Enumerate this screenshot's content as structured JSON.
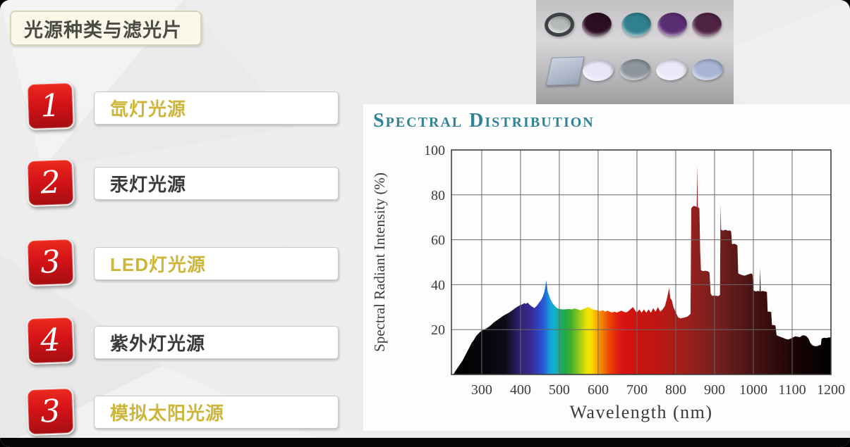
{
  "slide": {
    "title": "光源种类与滤光片",
    "items": [
      {
        "number": "1",
        "label": "氙灯光源",
        "emphasis": true
      },
      {
        "number": "2",
        "label": "汞灯光源",
        "emphasis": false
      },
      {
        "number": "3",
        "label": "LED灯光源",
        "emphasis": true
      },
      {
        "number": "4",
        "label": "紫外灯光源",
        "emphasis": false
      },
      {
        "number": "3",
        "label": "模拟太阳光源",
        "emphasis": true
      }
    ],
    "colors": {
      "badge_red": "#d41317",
      "gold_text": "#cdb53a",
      "dark_text": "#3a3a3a",
      "title_box_bg": "#fbf8ea",
      "chart_heading_teal": "#2f8298"
    }
  },
  "filters_image": {
    "top_row": [
      {
        "kind": "ringed-lens",
        "color": "#b5b9b5",
        "ring": "#3c4145"
      },
      {
        "kind": "filter-disc",
        "color": "#2c0d22"
      },
      {
        "kind": "filter-disc",
        "color": "#31808f"
      },
      {
        "kind": "filter-disc",
        "color": "#5b2e74"
      },
      {
        "kind": "filter-disc",
        "color": "#4f2342"
      }
    ],
    "bottom_row": [
      {
        "kind": "glass-plate",
        "color": "#b2bccf"
      },
      {
        "kind": "filter-disc",
        "color": "#e9e6fa"
      },
      {
        "kind": "filter-disc",
        "color": "#8d959c"
      },
      {
        "kind": "filter-disc",
        "color": "#ece7f8"
      },
      {
        "kind": "filter-disc",
        "color": "#a8b4d6"
      }
    ]
  },
  "chart_data": {
    "type": "area",
    "title": "Spectral Distribution",
    "xlabel": "Wavelength (nm)",
    "ylabel": "Spectral Radiant Intensity (%)",
    "x_ticks": [
      300,
      400,
      500,
      600,
      700,
      800,
      900,
      1000,
      1100,
      1200
    ],
    "y_ticks": [
      20,
      40,
      60,
      80,
      100
    ],
    "x_range": [
      222,
      1200
    ],
    "y_range": [
      0,
      100
    ],
    "grid": true,
    "points": [
      [
        227,
        0
      ],
      [
        232,
        1.5
      ],
      [
        238,
        3
      ],
      [
        244,
        4.5
      ],
      [
        250,
        6
      ],
      [
        256,
        8
      ],
      [
        262,
        10
      ],
      [
        268,
        12
      ],
      [
        274,
        14
      ],
      [
        280,
        15.5
      ],
      [
        285,
        17
      ],
      [
        290,
        18
      ],
      [
        295,
        18.8
      ],
      [
        300,
        19.5
      ],
      [
        306,
        20
      ],
      [
        312,
        20.5
      ],
      [
        318,
        21.2
      ],
      [
        324,
        22
      ],
      [
        330,
        23
      ],
      [
        338,
        24
      ],
      [
        346,
        25
      ],
      [
        354,
        26
      ],
      [
        362,
        26.8
      ],
      [
        370,
        27.5
      ],
      [
        378,
        28.5
      ],
      [
        386,
        29.5
      ],
      [
        392,
        30.2
      ],
      [
        398,
        30.8
      ],
      [
        404,
        31.2
      ],
      [
        410,
        31.8
      ],
      [
        414,
        31.4
      ],
      [
        418,
        32
      ],
      [
        424,
        31
      ],
      [
        430,
        30.2
      ],
      [
        436,
        29.6
      ],
      [
        442,
        30.6
      ],
      [
        448,
        32
      ],
      [
        453,
        33.2
      ],
      [
        457,
        34.5
      ],
      [
        461,
        36.5
      ],
      [
        464,
        39
      ],
      [
        466,
        42
      ],
      [
        468,
        40
      ],
      [
        470,
        37
      ],
      [
        473,
        35.5
      ],
      [
        476,
        34
      ],
      [
        480,
        32.5
      ],
      [
        484,
        31.4
      ],
      [
        489,
        30.4
      ],
      [
        494,
        29.6
      ],
      [
        500,
        29.2
      ],
      [
        508,
        29
      ],
      [
        516,
        29
      ],
      [
        524,
        29.2
      ],
      [
        532,
        29
      ],
      [
        540,
        29.4
      ],
      [
        548,
        29
      ],
      [
        554,
        28.6
      ],
      [
        560,
        29
      ],
      [
        566,
        29.4
      ],
      [
        572,
        30
      ],
      [
        578,
        29.8
      ],
      [
        584,
        29.2
      ],
      [
        590,
        28.8
      ],
      [
        598,
        28.6
      ],
      [
        606,
        28.2
      ],
      [
        612,
        28.6
      ],
      [
        618,
        28
      ],
      [
        624,
        28.4
      ],
      [
        630,
        28
      ],
      [
        636,
        27.6
      ],
      [
        642,
        28
      ],
      [
        648,
        27.6
      ],
      [
        654,
        28
      ],
      [
        660,
        28.4
      ],
      [
        666,
        28
      ],
      [
        672,
        27.6
      ],
      [
        678,
        28.2
      ],
      [
        684,
        29.2
      ],
      [
        690,
        30
      ],
      [
        695,
        28.6
      ],
      [
        700,
        27.5
      ],
      [
        706,
        29
      ],
      [
        712,
        27.5
      ],
      [
        718,
        29
      ],
      [
        724,
        27.5
      ],
      [
        730,
        29
      ],
      [
        736,
        27.5
      ],
      [
        742,
        29.5
      ],
      [
        748,
        28
      ],
      [
        754,
        30
      ],
      [
        760,
        28
      ],
      [
        766,
        29
      ],
      [
        772,
        30.5
      ],
      [
        776,
        33
      ],
      [
        780,
        36
      ],
      [
        783,
        38.5
      ],
      [
        786,
        34
      ],
      [
        790,
        33
      ],
      [
        794,
        30
      ],
      [
        798,
        28.5
      ],
      [
        802,
        27
      ],
      [
        806,
        25.5
      ],
      [
        812,
        25
      ],
      [
        818,
        25.2
      ],
      [
        824,
        25.5
      ],
      [
        830,
        25.8
      ],
      [
        835,
        26.5
      ],
      [
        838,
        27
      ],
      [
        840,
        74
      ],
      [
        845,
        75
      ],
      [
        850,
        75
      ],
      [
        854,
        74.5
      ],
      [
        855.5,
        93
      ],
      [
        857,
        74.5
      ],
      [
        861,
        74
      ],
      [
        863,
        55
      ],
      [
        865,
        46.5
      ],
      [
        870,
        46
      ],
      [
        876,
        46.2
      ],
      [
        882,
        46
      ],
      [
        887,
        45.5
      ],
      [
        890,
        36
      ],
      [
        894,
        35
      ],
      [
        900,
        35.2
      ],
      [
        906,
        35
      ],
      [
        911,
        35
      ],
      [
        914,
        35.5
      ],
      [
        915.5,
        76
      ],
      [
        917,
        64.5
      ],
      [
        922,
        64
      ],
      [
        928,
        64.5
      ],
      [
        934,
        64
      ],
      [
        940,
        64.2
      ],
      [
        943,
        63.5
      ],
      [
        945,
        58
      ],
      [
        950,
        58.2
      ],
      [
        955,
        58
      ],
      [
        959,
        57.5
      ],
      [
        961,
        45
      ],
      [
        966,
        44.6
      ],
      [
        972,
        44.2
      ],
      [
        978,
        44
      ],
      [
        984,
        44.4
      ],
      [
        990,
        44.8
      ],
      [
        995,
        45
      ],
      [
        998,
        44.5
      ],
      [
        1000,
        37.5
      ],
      [
        1006,
        37
      ],
      [
        1012,
        37.2
      ],
      [
        1016,
        37
      ],
      [
        1017.5,
        47.5
      ],
      [
        1019,
        37
      ],
      [
        1024,
        37.2
      ],
      [
        1030,
        37
      ],
      [
        1035,
        36.8
      ],
      [
        1037,
        28
      ],
      [
        1042,
        28
      ],
      [
        1046,
        27.8
      ],
      [
        1048,
        22
      ],
      [
        1053,
        22
      ],
      [
        1057,
        21.8
      ],
      [
        1060,
        17.5
      ],
      [
        1066,
        17
      ],
      [
        1072,
        16.6
      ],
      [
        1078,
        16.2
      ],
      [
        1084,
        15.8
      ],
      [
        1090,
        15.6
      ],
      [
        1096,
        16
      ],
      [
        1102,
        16.5
      ],
      [
        1108,
        17
      ],
      [
        1114,
        16.8
      ],
      [
        1120,
        16.6
      ],
      [
        1126,
        17.4
      ],
      [
        1132,
        17.4
      ],
      [
        1137,
        17
      ],
      [
        1142,
        16
      ],
      [
        1147,
        14
      ],
      [
        1152,
        13
      ],
      [
        1158,
        12.6
      ],
      [
        1164,
        12.6
      ],
      [
        1170,
        13
      ],
      [
        1174,
        13.2
      ],
      [
        1176,
        16
      ],
      [
        1182,
        16.4
      ],
      [
        1188,
        16.2
      ],
      [
        1194,
        16.5
      ],
      [
        1200,
        16.5
      ]
    ],
    "gradient_stops": [
      [
        222,
        "#000000"
      ],
      [
        360,
        "#0d0a14"
      ],
      [
        385,
        "#241a52"
      ],
      [
        400,
        "#2e2373"
      ],
      [
        420,
        "#35288a"
      ],
      [
        440,
        "#3436b4"
      ],
      [
        455,
        "#2a52cf"
      ],
      [
        465,
        "#1e6fd8"
      ],
      [
        475,
        "#199bdc"
      ],
      [
        485,
        "#14aed2"
      ],
      [
        495,
        "#16b0a6"
      ],
      [
        505,
        "#1aab68"
      ],
      [
        515,
        "#22a844"
      ],
      [
        530,
        "#3fae2e"
      ],
      [
        545,
        "#7cc122"
      ],
      [
        558,
        "#b5d312"
      ],
      [
        570,
        "#e8e202"
      ],
      [
        580,
        "#f8e000"
      ],
      [
        590,
        "#f8c300"
      ],
      [
        600,
        "#f7a000"
      ],
      [
        612,
        "#f47b00"
      ],
      [
        625,
        "#ef5300"
      ],
      [
        638,
        "#e93311"
      ],
      [
        650,
        "#e01f10"
      ],
      [
        665,
        "#d81410"
      ],
      [
        680,
        "#d31110"
      ],
      [
        700,
        "#cc1210"
      ],
      [
        730,
        "#c41511"
      ],
      [
        760,
        "#bd1713"
      ],
      [
        780,
        "#b21b16"
      ],
      [
        800,
        "#a81d18"
      ],
      [
        830,
        "#9c1f1b"
      ],
      [
        860,
        "#8b201e"
      ],
      [
        890,
        "#7c1f1e"
      ],
      [
        920,
        "#6e1d1d"
      ],
      [
        950,
        "#5e1a1a"
      ],
      [
        980,
        "#501616"
      ],
      [
        1010,
        "#431212"
      ],
      [
        1040,
        "#360e0e"
      ],
      [
        1070,
        "#2a0a0a"
      ],
      [
        1100,
        "#1d0606"
      ],
      [
        1140,
        "#100303"
      ],
      [
        1200,
        "#000000"
      ]
    ]
  }
}
